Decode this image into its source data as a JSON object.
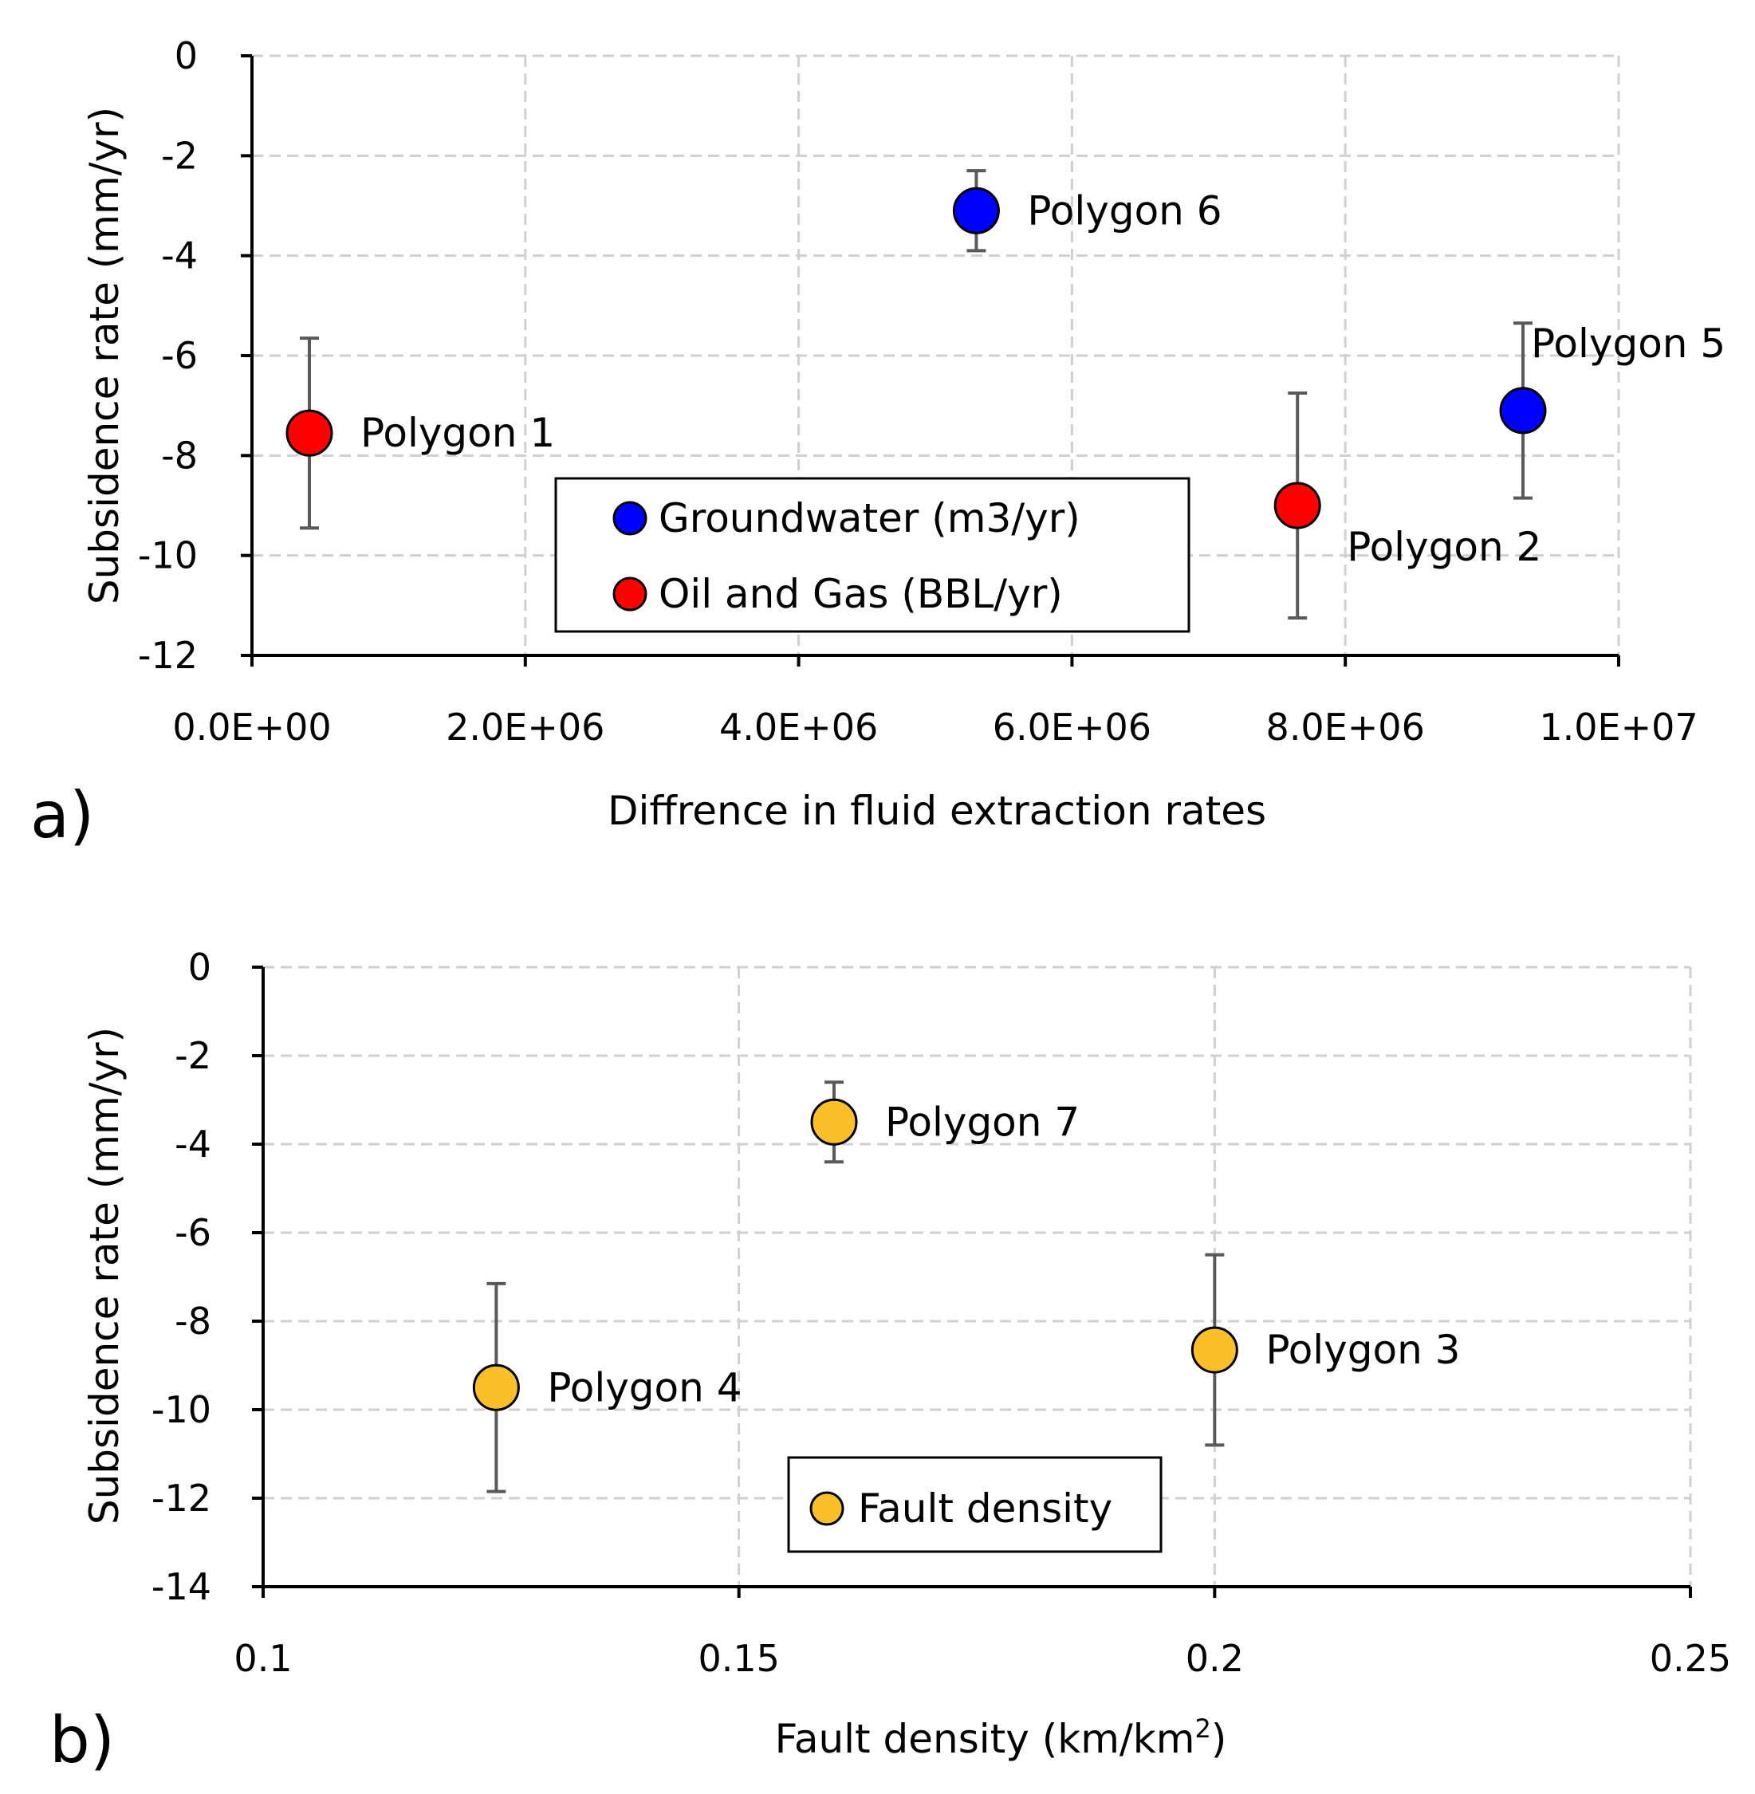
{
  "chart_data": [
    {
      "type": "scatter",
      "panel_label": "a)",
      "title": "",
      "xlabel": "Diffrence in fluid extraction rates",
      "ylabel": "Subsidence rate (mm/yr)",
      "xlim": [
        0,
        10000000
      ],
      "ylim": [
        -12,
        0
      ],
      "xticks": [
        0,
        2000000,
        4000000,
        6000000,
        8000000,
        10000000
      ],
      "xtick_labels": [
        "0.0E+00",
        "2.0E+06",
        "4.0E+06",
        "6.0E+06",
        "8.0E+06",
        "1.0E+07"
      ],
      "yticks": [
        0,
        -2,
        -4,
        -6,
        -8,
        -10,
        -12
      ],
      "ytick_labels": [
        "0",
        "-2",
        "-4",
        "-6",
        "-8",
        "-10",
        "-12"
      ],
      "grid": true,
      "legend_position": "bottom-center",
      "series": [
        {
          "name": "Groundwater (m3/yr)",
          "color": "#0000ff",
          "points": [
            {
              "label": "Polygon 6",
              "x": 5300000,
              "y": -3.1,
              "err": 0.8,
              "label_side": "right"
            },
            {
              "label": "Polygon 5",
              "x": 9300000,
              "y": -7.1,
              "err": 1.75,
              "label_side": "above-right"
            }
          ]
        },
        {
          "name": "Oil and Gas (BBL/yr)",
          "color": "#ff0000",
          "points": [
            {
              "label": "Polygon 1",
              "x": 420000,
              "y": -7.55,
              "err": 1.9,
              "label_side": "right"
            },
            {
              "label": "Polygon 2",
              "x": 7650000,
              "y": -9.0,
              "err": 2.25,
              "label_side": "below-right"
            }
          ]
        }
      ]
    },
    {
      "type": "scatter",
      "panel_label": "b)",
      "title": "",
      "xlabel": "Fault density (km/km",
      "xlabel_sup": "2",
      "xlabel_tail": ")",
      "ylabel": "Subsidence rate (mm/yr)",
      "xlim": [
        0.1,
        0.25
      ],
      "ylim": [
        -14,
        0
      ],
      "xticks": [
        0.1,
        0.15,
        0.2,
        0.25
      ],
      "xtick_labels": [
        "0.1",
        "0.15",
        "0.2",
        "0.25"
      ],
      "yticks": [
        0,
        -2,
        -4,
        -6,
        -8,
        -10,
        -12,
        -14
      ],
      "ytick_labels": [
        "0",
        "-2",
        "-4",
        "-6",
        "-8",
        "-10",
        "-12",
        "-14"
      ],
      "grid": true,
      "legend_position": "bottom-center",
      "series": [
        {
          "name": "Fault density",
          "color": "#fbbf2a",
          "points": [
            {
              "label": "Polygon 7",
              "x": 0.16,
              "y": -3.5,
              "err": 0.9,
              "label_side": "right"
            },
            {
              "label": "Polygon 4",
              "x": 0.1245,
              "y": -9.5,
              "err": 2.35,
              "label_side": "right"
            },
            {
              "label": "Polygon 3",
              "x": 0.2,
              "y": -8.65,
              "err": 2.15,
              "label_side": "right"
            }
          ]
        }
      ]
    }
  ]
}
